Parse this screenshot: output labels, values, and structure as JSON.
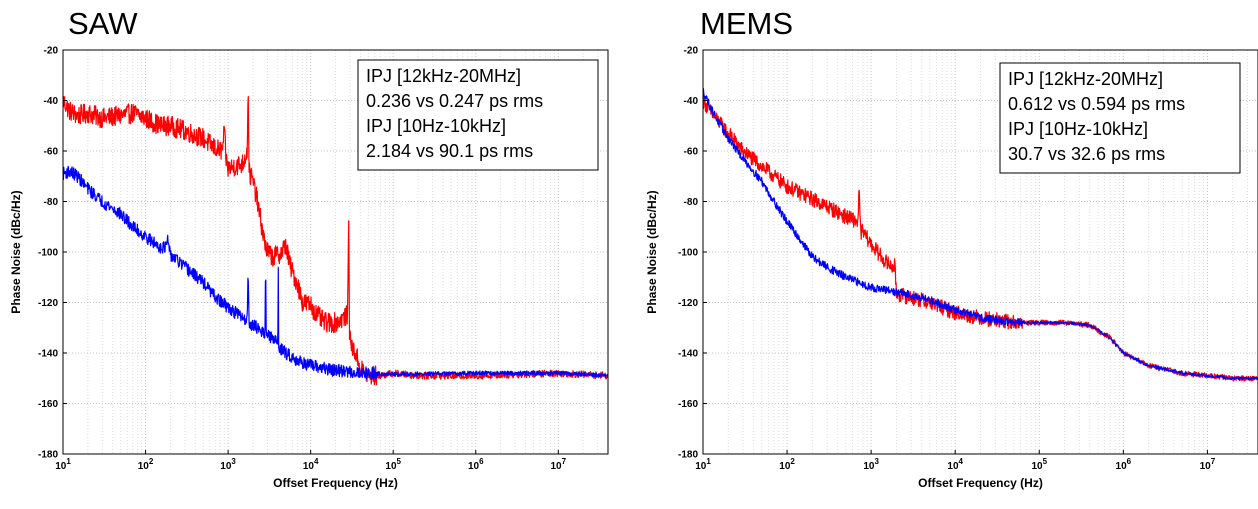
{
  "chart_data": [
    {
      "type": "line",
      "title": "SAW",
      "xlabel": "Offset Frequency (Hz)",
      "ylabel": "Phase Noise (dBc/Hz)",
      "xscale": "log",
      "xlim": [
        10,
        40000000
      ],
      "ylim": [
        -180,
        -20
      ],
      "yticks": [
        -20,
        -40,
        -60,
        -80,
        -100,
        -120,
        -140,
        -160,
        -180
      ],
      "xticks": [
        {
          "value": 10,
          "base": "10",
          "exp": "1"
        },
        {
          "value": 100,
          "base": "10",
          "exp": "2"
        },
        {
          "value": 1000,
          "base": "10",
          "exp": "3"
        },
        {
          "value": 10000,
          "base": "10",
          "exp": "4"
        },
        {
          "value": 100000,
          "base": "10",
          "exp": "5"
        },
        {
          "value": 1000000,
          "base": "10",
          "exp": "6"
        },
        {
          "value": 10000000,
          "base": "10",
          "exp": "7"
        }
      ],
      "grid": true,
      "annotation": [
        "IPJ [12kHz-20MHz]",
        "0.236 vs 0.247 ps rms",
        "IPJ [10Hz-10kHz]",
        "2.184 vs 90.1 ps rms"
      ],
      "series": [
        {
          "color": "#ff0000",
          "noise": 4,
          "x": [
            10,
            12,
            15,
            20,
            30,
            50,
            70,
            100,
            150,
            200,
            300,
            500,
            700,
            850,
            900,
            950,
            1000,
            1200,
            1500,
            1700,
            1750,
            1800,
            1850,
            1900,
            2000,
            2200,
            2500,
            2800,
            3000,
            3500,
            4000,
            4500,
            5000,
            5500,
            6000,
            7000,
            8000,
            10000,
            12000,
            15000,
            20000,
            25000,
            28000,
            29000,
            29500,
            30000,
            32000,
            35000,
            40000,
            50000,
            70000,
            100000,
            200000,
            500000,
            1000000,
            3000000,
            10000000,
            20000000,
            40000000
          ],
          "y": [
            -40,
            -44,
            -46,
            -45,
            -47,
            -46,
            -45,
            -47,
            -50,
            -50,
            -52,
            -55,
            -59,
            -60,
            -52,
            -64,
            -67,
            -66,
            -65,
            -60,
            -37,
            -68,
            -70,
            -70,
            -72,
            -78,
            -88,
            -97,
            -100,
            -102,
            -101,
            -100,
            -97,
            -104,
            -108,
            -113,
            -120,
            -121,
            -125,
            -128,
            -128,
            -126,
            -125,
            -82,
            -130,
            -135,
            -138,
            -140,
            -146,
            -149,
            -149,
            -148,
            -149,
            -149,
            -149,
            -148.5,
            -148,
            -148.5,
            -149
          ]
        },
        {
          "color": "#0000ff",
          "noise": 2.5,
          "x": [
            10,
            12,
            15,
            20,
            30,
            50,
            70,
            100,
            150,
            180,
            185,
            190,
            200,
            300,
            500,
            700,
            1000,
            1500,
            1700,
            1750,
            1800,
            2000,
            2800,
            2850,
            2900,
            3000,
            4000,
            4050,
            4100,
            4200,
            5000,
            7000,
            10000,
            20000,
            50000,
            100000,
            1000000,
            10000000,
            20000000,
            40000000
          ],
          "y": [
            -69,
            -68,
            -70,
            -75,
            -80,
            -85,
            -90,
            -94,
            -98,
            -98,
            -93,
            -99,
            -101,
            -106,
            -112,
            -118,
            -122,
            -126,
            -127,
            -108,
            -128,
            -129,
            -132,
            -102,
            -133,
            -133,
            -136,
            -104,
            -137,
            -138,
            -140,
            -143,
            -145,
            -147,
            -148,
            -148.5,
            -148,
            -148,
            -148.5,
            -149
          ]
        }
      ]
    },
    {
      "type": "line",
      "title": "MEMS",
      "xlabel": "Offset Frequency (Hz)",
      "ylabel": "Phase Noise (dBc/Hz)",
      "xscale": "log",
      "xlim": [
        10,
        40000000
      ],
      "ylim": [
        -180,
        -20
      ],
      "yticks": [
        -20,
        -40,
        -60,
        -80,
        -100,
        -120,
        -140,
        -160,
        -180
      ],
      "xticks": [
        {
          "value": 10,
          "base": "10",
          "exp": "1"
        },
        {
          "value": 100,
          "base": "10",
          "exp": "2"
        },
        {
          "value": 1000,
          "base": "10",
          "exp": "3"
        },
        {
          "value": 10000,
          "base": "10",
          "exp": "4"
        },
        {
          "value": 100000,
          "base": "10",
          "exp": "5"
        },
        {
          "value": 1000000,
          "base": "10",
          "exp": "6"
        },
        {
          "value": 10000000,
          "base": "10",
          "exp": "7"
        }
      ],
      "grid": true,
      "annotation": [
        "IPJ [12kHz-20MHz]",
        "0.612 vs 0.594 ps rms",
        "IPJ [10Hz-10kHz]",
        "30.7 vs 32.6 ps rms"
      ],
      "series": [
        {
          "color": "#ff0000",
          "noise": 3,
          "x": [
            10,
            12,
            15,
            20,
            30,
            50,
            70,
            100,
            150,
            200,
            300,
            500,
            700,
            720,
            740,
            760,
            800,
            1000,
            1500,
            1800,
            1900,
            2000,
            2200,
            3000,
            5000,
            10000,
            20000,
            50000,
            100000,
            200000,
            400000,
            500000,
            700000,
            1000000,
            2000000,
            5000000,
            10000000,
            20000000,
            40000000
          ],
          "y": [
            -40,
            -44,
            -48,
            -53,
            -60,
            -66,
            -70,
            -74,
            -77,
            -79,
            -82,
            -86,
            -88,
            -74,
            -90,
            -92,
            -92,
            -97,
            -104,
            -106,
            -105,
            -116,
            -117,
            -118,
            -120,
            -124,
            -126,
            -128,
            -128,
            -128,
            -129,
            -131,
            -134,
            -140,
            -145,
            -148,
            -149,
            -150,
            -150
          ]
        },
        {
          "color": "#0000ff",
          "noise": 1.6,
          "x": [
            10,
            12,
            15,
            20,
            30,
            50,
            70,
            100,
            150,
            200,
            300,
            500,
            700,
            1000,
            2000,
            3000,
            5000,
            10000,
            20000,
            50000,
            100000,
            200000,
            400000,
            500000,
            700000,
            1000000,
            2000000,
            5000000,
            10000000,
            20000000,
            40000000
          ],
          "y": [
            -36,
            -42,
            -48,
            -55,
            -63,
            -72,
            -80,
            -88,
            -96,
            -102,
            -106,
            -110,
            -112,
            -114,
            -116,
            -117,
            -119,
            -123,
            -126,
            -128,
            -128,
            -128,
            -129,
            -131,
            -134,
            -140,
            -145,
            -148,
            -149,
            -150,
            -150
          ]
        }
      ]
    }
  ]
}
